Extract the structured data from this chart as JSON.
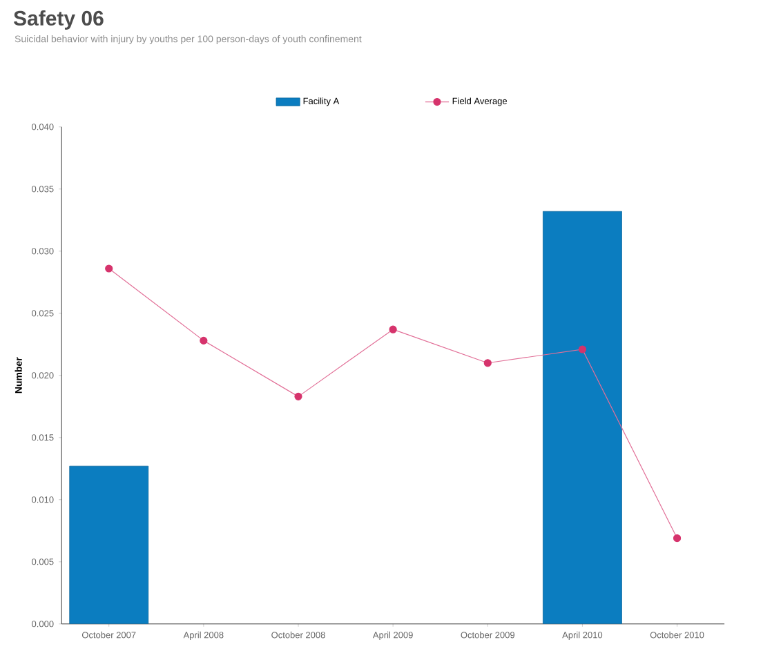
{
  "chart_data": {
    "type": "bar",
    "title": "Safety 06",
    "subtitle": "Suicidal behavior with injury by youths per 100 person-days of youth confinement",
    "ylabel": "Number",
    "categories": [
      "October 2007",
      "April 2008",
      "October 2008",
      "April 2009",
      "October 2009",
      "April 2010",
      "October 2010"
    ],
    "series": [
      {
        "name": "Facility A",
        "color": "#0b7dc0",
        "values": [
          0.0127,
          null,
          null,
          null,
          null,
          0.0332,
          null
        ]
      },
      {
        "name": "Field Average",
        "type": "line",
        "color": "#d6336c",
        "marker": "circle",
        "values": [
          0.0286,
          0.0228,
          0.0183,
          0.0237,
          0.021,
          0.0221,
          0.0069
        ]
      }
    ],
    "ylim": [
      0,
      0.04
    ],
    "yticks": [
      {
        "value": 0,
        "label": "0.000"
      },
      {
        "value": 0.005,
        "label": "0.005"
      },
      {
        "value": 0.01,
        "label": "0.010"
      },
      {
        "value": 0.015,
        "label": "0.015"
      },
      {
        "value": 0.02,
        "label": "0.020"
      },
      {
        "value": 0.025,
        "label": "0.025"
      },
      {
        "value": 0.03,
        "label": "0.030"
      },
      {
        "value": 0.035,
        "label": "0.035"
      },
      {
        "value": 0.04,
        "label": "0.040"
      }
    ],
    "grid": false,
    "legend": "top"
  }
}
